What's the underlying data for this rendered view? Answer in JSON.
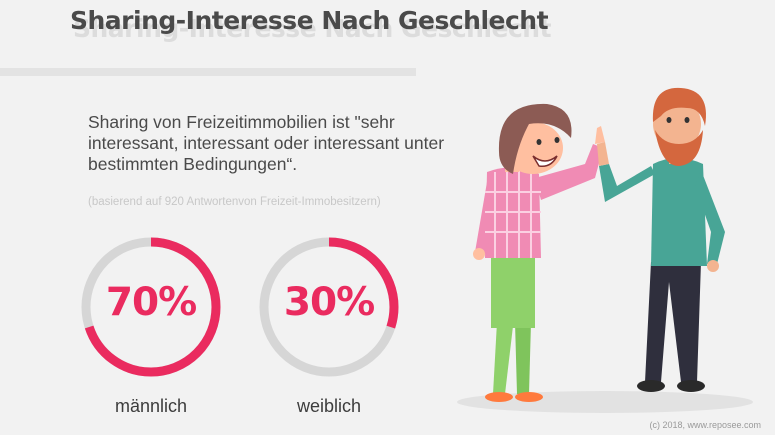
{
  "title": "Sharing-Interesse Nach Geschlecht",
  "statement": "Sharing von Freizeitimmobilien ist \"sehr interessant, interessant oder interessant unter bestimmten Bedingungen“.",
  "basis_note": "(basierend auf 920 Antwortenvon Freizeit-Immobesitzern)",
  "copyright": "(c) 2018, www.reposee.com",
  "colors": {
    "accent": "#ea2b5f",
    "track": "#d6d6d6",
    "text": "#4a4a4a"
  },
  "chart_data": {
    "type": "pie",
    "categories": [
      "männlich",
      "weiblich"
    ],
    "values": [
      70,
      30
    ],
    "value_labels": [
      "70%",
      "30%"
    ],
    "unit": "%"
  }
}
